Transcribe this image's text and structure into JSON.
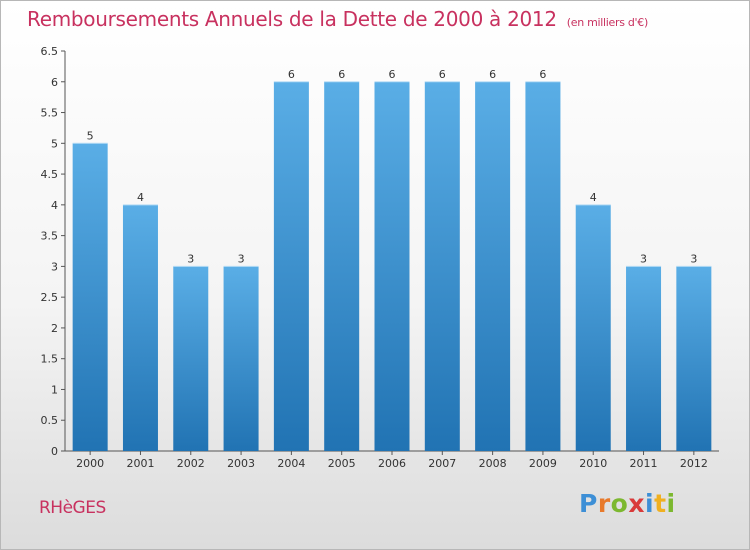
{
  "chart_data": {
    "type": "bar",
    "title": "Remboursements Annuels de la Dette de 2000 à 2012",
    "subtitle": "(en milliers d'€)",
    "categories": [
      "2000",
      "2001",
      "2002",
      "2003",
      "2004",
      "2005",
      "2006",
      "2007",
      "2008",
      "2009",
      "2010",
      "2011",
      "2012"
    ],
    "values": [
      5,
      4,
      3,
      3,
      6,
      6,
      6,
      6,
      6,
      6,
      4,
      3,
      3
    ],
    "data_labels": [
      "5",
      "4",
      "3",
      "3",
      "6",
      "6",
      "6",
      "6",
      "6",
      "6",
      "4",
      "3",
      "3"
    ],
    "ylim": [
      0,
      6.5
    ],
    "yticks": [
      "0",
      "0.5",
      "1",
      "1.5",
      "2",
      "2.5",
      "3",
      "3.5",
      "4",
      "4.5",
      "5",
      "5.5",
      "6",
      "6.5"
    ],
    "grid": false,
    "bar_color": "#4f9fd9"
  },
  "footer": {
    "commune": "RHèGES",
    "logo_letters": [
      {
        "ch": "P",
        "color": "#3d8fd6"
      },
      {
        "ch": "r",
        "color": "#e8792a"
      },
      {
        "ch": "o",
        "color": "#7cb82f"
      },
      {
        "ch": "x",
        "color": "#d93a3a"
      },
      {
        "ch": "i",
        "color": "#3d8fd6"
      },
      {
        "ch": "t",
        "color": "#f0b020"
      },
      {
        "ch": "i",
        "color": "#7cb82f"
      }
    ]
  }
}
